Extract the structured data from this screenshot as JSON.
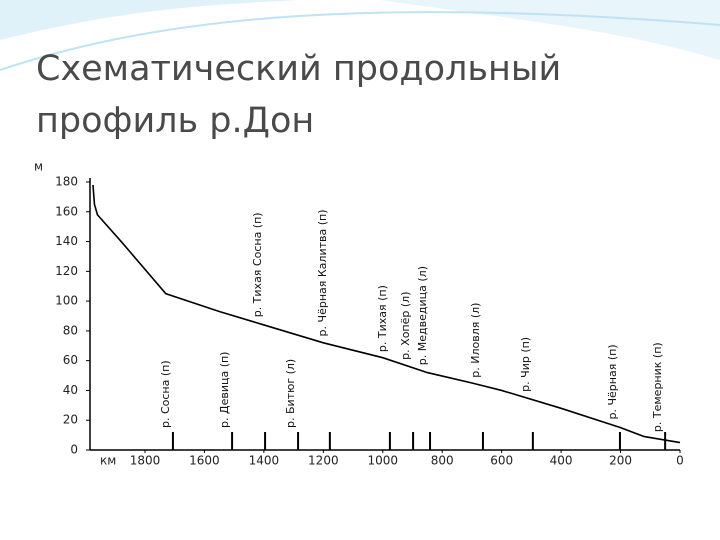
{
  "chart_data": {
    "type": "line",
    "title_lines": [
      "Схематический продольный",
      "профиль р.Дон"
    ],
    "y_label": "м",
    "x_label": "км",
    "x": [
      1975,
      1970,
      1960,
      1880,
      1730,
      1550,
      1400,
      1200,
      1000,
      850,
      700,
      600,
      400,
      200,
      120,
      0
    ],
    "values": [
      178,
      165,
      158,
      140,
      105,
      93,
      84,
      72,
      62,
      52,
      45,
      40,
      28,
      15,
      9,
      5
    ],
    "color": "#000000",
    "xlim": [
      1985,
      0
    ],
    "ylim": [
      0,
      180
    ],
    "xticks": [
      1800,
      1600,
      1400,
      1200,
      1000,
      800,
      600,
      400,
      200,
      0
    ],
    "yticks": [
      0,
      20,
      40,
      60,
      80,
      100,
      120,
      140,
      160,
      180
    ],
    "tributaries": [
      {
        "name": "р. Сосна (п)",
        "km": 1706
      },
      {
        "name": "р. Девица (п)",
        "km": 1507
      },
      {
        "name": "р. Тихая Сосна (п)",
        "km": 1396
      },
      {
        "name": "р. Битюг (л)",
        "km": 1285
      },
      {
        "name": "р. Чёрная Калитва (п)",
        "km": 1178
      },
      {
        "name": "р. Тихая (п)",
        "km": 976
      },
      {
        "name": "р. Хопёр (л)",
        "km": 898
      },
      {
        "name": "р. Медведица (л)",
        "km": 841
      },
      {
        "name": "р. Иловля (л)",
        "km": 663
      },
      {
        "name": "р. Чир (п)",
        "km": 495
      },
      {
        "name": "р. Чёрная (п)",
        "km": 202
      },
      {
        "name": "р. Темерник (п)",
        "km": 50
      }
    ]
  }
}
